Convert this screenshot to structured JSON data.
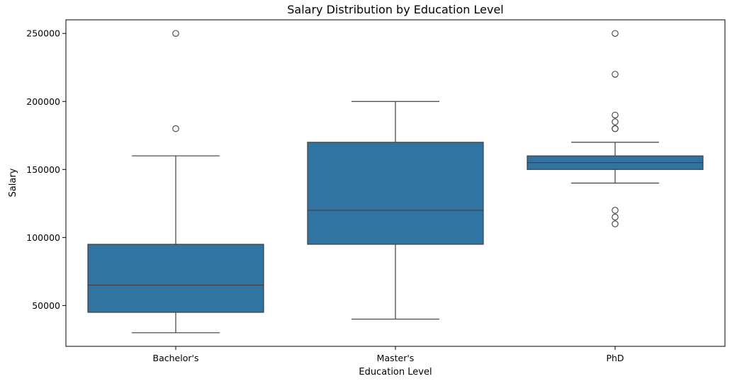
{
  "chart_data": {
    "type": "box",
    "title": "Salary Distribution by Education Level",
    "xlabel": "Education Level",
    "ylabel": "Salary",
    "ylim": [
      20000,
      260000
    ],
    "yticks": [
      50000,
      100000,
      150000,
      200000,
      250000
    ],
    "ytick_labels": [
      "50000",
      "100000",
      "150000",
      "200000",
      "250000"
    ],
    "grid": false,
    "legend": "none",
    "box_color": "#3274a1",
    "line_color": "#3f3f3f",
    "categories": [
      "Bachelor's",
      "Master's",
      "PhD"
    ],
    "boxes": [
      {
        "category": "Bachelor's",
        "whisker_low": 30000,
        "q1": 45000,
        "median": 65000,
        "q3": 95000,
        "whisker_high": 160000,
        "outliers": [
          180000,
          250000
        ]
      },
      {
        "category": "Master's",
        "whisker_low": 40000,
        "q1": 95000,
        "median": 120000,
        "q3": 170000,
        "whisker_high": 200000,
        "outliers": []
      },
      {
        "category": "PhD",
        "whisker_low": 140000,
        "q1": 150000,
        "median": 155000,
        "q3": 160000,
        "whisker_high": 170000,
        "outliers": [
          110000,
          115000,
          120000,
          180000,
          180000,
          185000,
          190000,
          220000,
          250000
        ]
      }
    ]
  }
}
